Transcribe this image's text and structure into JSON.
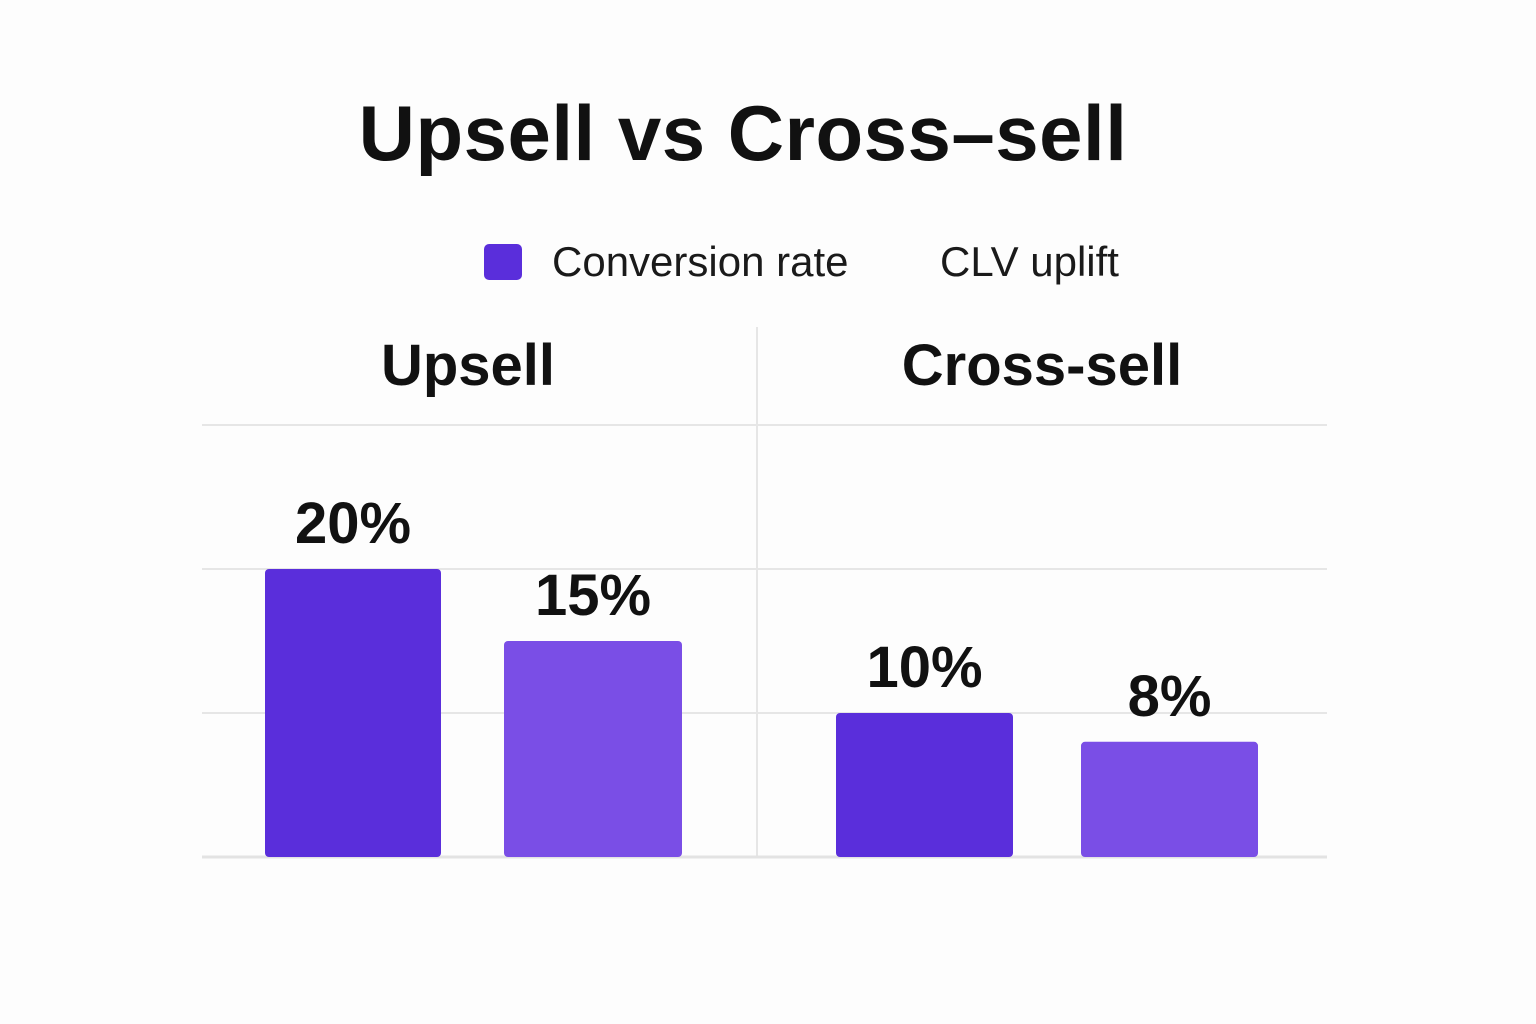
{
  "chart_data": {
    "type": "bar",
    "title": "Upsell vs Cross–sell",
    "categories": [
      "Upsell",
      "Cross-sell"
    ],
    "series": [
      {
        "name": "Conversion rate",
        "color": "#5a2edb",
        "values": [
          20,
          10
        ]
      },
      {
        "name": "CLV uplift",
        "color": "#7a4ee6",
        "values": [
          15,
          8
        ]
      }
    ],
    "value_labels": [
      [
        "20%",
        "10%"
      ],
      [
        "15%",
        "8%"
      ]
    ],
    "legend_position": "top",
    "grid": true,
    "layout": "two panels, one per category"
  }
}
